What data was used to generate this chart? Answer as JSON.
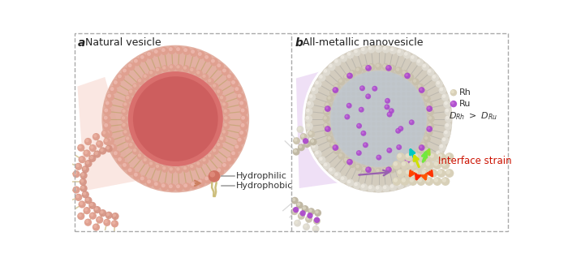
{
  "panel_a_title": "Natural vesicle",
  "panel_b_title": "All-metallic nanovesicle",
  "label_a": "a",
  "label_b": "b",
  "hydrophilic_label": "Hydrophilic",
  "hydrophobic_label": "Hydrophobic",
  "rh_label": "Rh",
  "ru_label": "Ru",
  "interface_strain_label": "Interface strain",
  "bg_color": "#ffffff",
  "panel_a_inner_color": "#c96060",
  "panel_a_mid_color": "#e09090",
  "panel_a_bead_color": "#dfa090",
  "panel_a_tail_color": "#c8b87a",
  "panel_b_shell_color": "#c8c0b0",
  "panel_b_inner_color": "#a8b8cc",
  "panel_b_bead_color": "#d8d0bc",
  "panel_b_ru_color": "#aa44cc",
  "font_size_title": 9,
  "font_size_label": 8,
  "font_size_legend": 8,
  "font_size_ab": 10
}
